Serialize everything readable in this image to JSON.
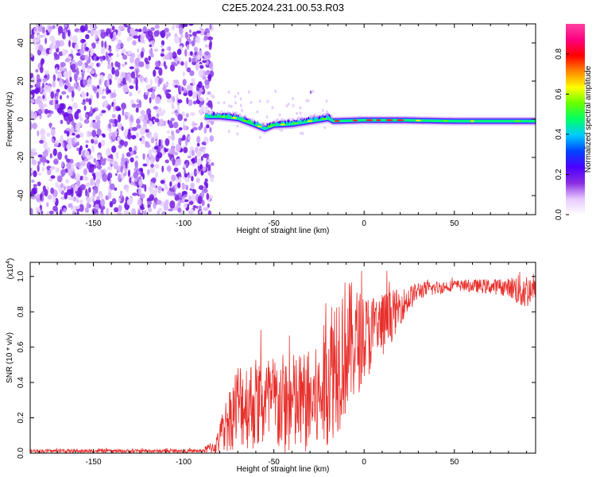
{
  "page": {
    "title": "C2E5.2024.231.00.53.R03"
  },
  "colors": {
    "snr_line": "#e8302c",
    "colormap": [
      "#ffffff",
      "#e6c8ff",
      "#8a2be2",
      "#4b00ff",
      "#0044ff",
      "#00ccff",
      "#00ff66",
      "#66ff00",
      "#ffff00",
      "#ff8800",
      "#ff0000",
      "#ff0080",
      "#ff40a0"
    ]
  },
  "chart_data": [
    {
      "type": "heatmap",
      "title": "C2E5.2024.231.00.53.R03",
      "xlabel": "Height of straight line (km)",
      "ylabel": "Frequency (Hz)",
      "xlim": [
        -185,
        95
      ],
      "ylim": [
        -50,
        50
      ],
      "x_ticks": [
        -150,
        -100,
        -50,
        0,
        50
      ],
      "y_ticks": [
        -40,
        -20,
        0,
        20,
        40
      ],
      "noise_region": {
        "x_range": [
          -185,
          -87
        ],
        "description": "scattered low-amplitude noise across full frequency range"
      },
      "signal_track": [
        {
          "x": -87,
          "y": 1.5
        },
        {
          "x": -80,
          "y": 1.5
        },
        {
          "x": -70,
          "y": 0.5
        },
        {
          "x": -60,
          "y": -3
        },
        {
          "x": -55,
          "y": -5
        },
        {
          "x": -50,
          "y": -3
        },
        {
          "x": -40,
          "y": -2.5
        },
        {
          "x": -30,
          "y": -1
        },
        {
          "x": -20,
          "y": 0.5
        },
        {
          "x": -17,
          "y": -1
        },
        {
          "x": 0,
          "y": -0.5
        },
        {
          "x": 20,
          "y": -0.5
        },
        {
          "x": 50,
          "y": -1
        },
        {
          "x": 95,
          "y": -1
        }
      ],
      "colorbar": {
        "label": "Normalized spectral amplitude",
        "range": [
          0,
          0.95
        ],
        "ticks": [
          0.0,
          0.2,
          0.4,
          0.6,
          0.8
        ]
      }
    },
    {
      "type": "line",
      "xlabel": "Height of straight line (km)",
      "ylabel": "SNR (10 * v/v)",
      "y_multiplier": "(x10",
      "y_multiplier_exp": "4",
      "y_multiplier_close": ")",
      "xlim": [
        -185,
        95
      ],
      "ylim": [
        0,
        1.08
      ],
      "x_ticks": [
        -150,
        -100,
        -50,
        0,
        50
      ],
      "y_ticks": [
        0.0,
        0.2,
        0.4,
        0.6,
        0.8,
        1.0
      ],
      "series": [
        {
          "envelope": [
            {
              "x": -185,
              "mean": 0.012,
              "amp": 0.01
            },
            {
              "x": -90,
              "mean": 0.012,
              "amp": 0.01
            },
            {
              "x": -82,
              "mean": 0.04,
              "amp": 0.05
            },
            {
              "x": -77,
              "mean": 0.15,
              "amp": 0.15
            },
            {
              "x": -70,
              "mean": 0.28,
              "amp": 0.25
            },
            {
              "x": -55,
              "mean": 0.28,
              "amp": 0.28
            },
            {
              "x": -40,
              "mean": 0.27,
              "amp": 0.3
            },
            {
              "x": -25,
              "mean": 0.3,
              "amp": 0.3
            },
            {
              "x": -20,
              "mean": 0.45,
              "amp": 0.4
            },
            {
              "x": -15,
              "mean": 0.55,
              "amp": 0.45
            },
            {
              "x": -10,
              "mean": 0.6,
              "amp": 0.4
            },
            {
              "x": 0,
              "mean": 0.65,
              "amp": 0.25
            },
            {
              "x": 10,
              "mean": 0.72,
              "amp": 0.2
            },
            {
              "x": 20,
              "mean": 0.83,
              "amp": 0.1
            },
            {
              "x": 30,
              "mean": 0.92,
              "amp": 0.05
            },
            {
              "x": 50,
              "mean": 0.95,
              "amp": 0.03
            },
            {
              "x": 80,
              "mean": 0.94,
              "amp": 0.05
            },
            {
              "x": 88,
              "mean": 0.92,
              "amp": 0.12
            },
            {
              "x": 95,
              "mean": 0.92,
              "amp": 0.06
            }
          ]
        }
      ]
    }
  ]
}
